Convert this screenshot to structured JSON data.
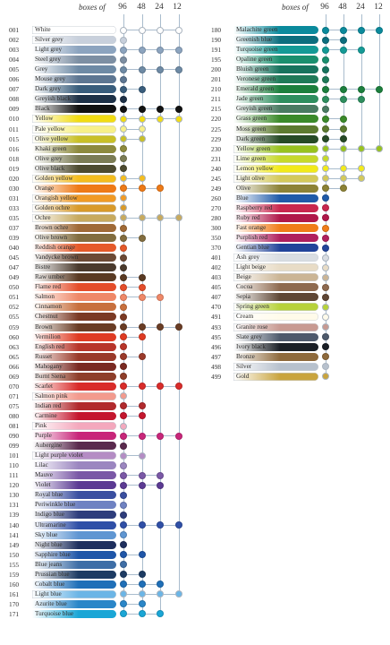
{
  "header": {
    "boxes_label": "boxes of",
    "box_sizes": [
      "96",
      "48",
      "24",
      "12"
    ]
  },
  "left_column": [
    {
      "code": "001",
      "name": "White",
      "color": "#ffffff",
      "light": true,
      "boxes": [
        96,
        48,
        24,
        12
      ]
    },
    {
      "code": "002",
      "name": "Silver grey",
      "color": "#c8d0dc",
      "light": true,
      "boxes": [
        96
      ]
    },
    {
      "code": "003",
      "name": "Light grey",
      "color": "#8ca4bf",
      "boxes": [
        96,
        48,
        24,
        12
      ]
    },
    {
      "code": "004",
      "name": "Steel grey",
      "color": "#7d8fa3",
      "boxes": [
        96
      ]
    },
    {
      "code": "005",
      "name": "Grey",
      "color": "#6e8aa5",
      "boxes": [
        96,
        48,
        24,
        12
      ]
    },
    {
      "code": "006",
      "name": "Mouse grey",
      "color": "#5d7692",
      "boxes": [
        96
      ]
    },
    {
      "code": "007",
      "name": "Dark grey",
      "color": "#395d7c",
      "boxes": [
        96,
        48
      ]
    },
    {
      "code": "008",
      "name": "Greyish black",
      "color": "#1e3147",
      "boxes": [
        96
      ]
    },
    {
      "code": "009",
      "name": "Black",
      "color": "#111111",
      "boxes": [
        96,
        48,
        24,
        12
      ]
    },
    {
      "code": "010",
      "name": "Yellow",
      "color": "#f2dc12",
      "light": true,
      "boxes": [
        96,
        48,
        24,
        12
      ]
    },
    {
      "code": "011",
      "name": "Pale yellow",
      "color": "#f7f089",
      "light": true,
      "boxes": [
        96,
        48
      ]
    },
    {
      "code": "015",
      "name": "Olive yellow",
      "color": "#c9c027",
      "light": true,
      "boxes": [
        96,
        48
      ]
    },
    {
      "code": "016",
      "name": "Khaki green",
      "color": "#8d8a3e",
      "boxes": [
        96
      ]
    },
    {
      "code": "018",
      "name": "Olive grey",
      "color": "#7b7c55",
      "boxes": [
        96
      ]
    },
    {
      "code": "019",
      "name": "Olive black",
      "color": "#4d4b30",
      "boxes": [
        96
      ]
    },
    {
      "code": "020",
      "name": "Golden yellow",
      "color": "#f4bd1e",
      "light": true,
      "boxes": [
        96,
        48
      ]
    },
    {
      "code": "030",
      "name": "Orange",
      "color": "#ee7a17",
      "boxes": [
        96,
        48,
        24
      ]
    },
    {
      "code": "031",
      "name": "Orangish yellow",
      "color": "#f19a24",
      "light": true,
      "boxes": [
        96
      ]
    },
    {
      "code": "033",
      "name": "Golden ochre",
      "color": "#d99a2a",
      "light": true,
      "boxes": [
        96
      ]
    },
    {
      "code": "035",
      "name": "Ochre",
      "color": "#c8aa5e",
      "light": true,
      "boxes": [
        96,
        48,
        24,
        12
      ]
    },
    {
      "code": "037",
      "name": "Brown ochre",
      "color": "#a06a37",
      "boxes": [
        96
      ]
    },
    {
      "code": "039",
      "name": "Olive brown",
      "color": "#826d3f",
      "boxes": [
        96,
        48
      ]
    },
    {
      "code": "040",
      "name": "Reddish orange",
      "color": "#e55a2a",
      "boxes": [
        96
      ]
    },
    {
      "code": "045",
      "name": "Vandycke brown",
      "color": "#6c4a36",
      "boxes": [
        96
      ]
    },
    {
      "code": "047",
      "name": "Bistre",
      "color": "#4a3a2d",
      "boxes": [
        96
      ]
    },
    {
      "code": "049",
      "name": "Raw umber",
      "color": "#5a3a23",
      "boxes": [
        96,
        48
      ]
    },
    {
      "code": "050",
      "name": "Flame red",
      "color": "#e44d2a",
      "boxes": [
        96,
        48
      ]
    },
    {
      "code": "051",
      "name": "Salmon",
      "color": "#ef8868",
      "boxes": [
        96,
        48,
        24
      ]
    },
    {
      "code": "052",
      "name": "Cinnamon",
      "color": "#c8703e",
      "boxes": [
        96
      ]
    },
    {
      "code": "055",
      "name": "Chestnut",
      "color": "#7b3a24",
      "boxes": [
        96
      ]
    },
    {
      "code": "059",
      "name": "Brown",
      "color": "#6a3d25",
      "boxes": [
        96,
        48,
        24,
        12
      ]
    },
    {
      "code": "060",
      "name": "Vermilion",
      "color": "#df3b23",
      "boxes": [
        96,
        48
      ]
    },
    {
      "code": "063",
      "name": "English red",
      "color": "#b8352a",
      "boxes": [
        96
      ]
    },
    {
      "code": "065",
      "name": "Russet",
      "color": "#9a3a2a",
      "boxes": [
        96,
        48
      ]
    },
    {
      "code": "066",
      "name": "Mahogany",
      "color": "#7a2a22",
      "boxes": [
        96
      ]
    },
    {
      "code": "069",
      "name": "Burnt Siena",
      "color": "#8e3e2a",
      "boxes": [
        96
      ]
    },
    {
      "code": "070",
      "name": "Scarlet",
      "color": "#d92c2a",
      "boxes": [
        96,
        48,
        24,
        12
      ]
    },
    {
      "code": "071",
      "name": "Salmon pink",
      "color": "#f39a8d",
      "light": true,
      "boxes": [
        96
      ]
    },
    {
      "code": "075",
      "name": "Indian red",
      "color": "#b12a2d",
      "boxes": [
        96,
        48
      ]
    },
    {
      "code": "080",
      "name": "Carmine",
      "color": "#c4162e",
      "boxes": [
        96,
        48
      ]
    },
    {
      "code": "081",
      "name": "Pink",
      "color": "#f4a8bd",
      "light": true,
      "boxes": [
        96
      ]
    },
    {
      "code": "090",
      "name": "Purple",
      "color": "#c8267a",
      "boxes": [
        96,
        48,
        24,
        12
      ]
    },
    {
      "code": "099",
      "name": "Aubergine",
      "color": "#5a2a4e",
      "boxes": [
        96
      ]
    },
    {
      "code": "101",
      "name": "Light purple violet",
      "color": "#b48cc4",
      "light": true,
      "boxes": [
        96,
        48
      ]
    },
    {
      "code": "110",
      "name": "Lilac",
      "color": "#9b86c0",
      "boxes": [
        96
      ]
    },
    {
      "code": "111",
      "name": "Mauve",
      "color": "#7a58a6",
      "boxes": [
        96,
        48,
        24
      ]
    },
    {
      "code": "120",
      "name": "Violet",
      "color": "#5b3a93",
      "boxes": [
        96,
        48,
        24
      ]
    },
    {
      "code": "130",
      "name": "Royal blue",
      "color": "#3a4fa0",
      "boxes": [
        96
      ]
    },
    {
      "code": "131",
      "name": "Periwinkle blue",
      "color": "#6f82c2",
      "boxes": [
        96
      ]
    },
    {
      "code": "139",
      "name": "Indigo blue",
      "color": "#2e3d7c",
      "boxes": [
        96
      ]
    },
    {
      "code": "140",
      "name": "Ultramarine",
      "color": "#2f4fa7",
      "boxes": [
        96,
        48,
        24,
        12
      ]
    },
    {
      "code": "141",
      "name": "Sky blue",
      "color": "#5f96d2",
      "boxes": [
        96
      ]
    },
    {
      "code": "149",
      "name": "Night blue",
      "color": "#1e2f5e",
      "boxes": [
        96
      ]
    },
    {
      "code": "150",
      "name": "Sapphire blue",
      "color": "#1f56a8",
      "boxes": [
        96,
        48
      ]
    },
    {
      "code": "155",
      "name": "Blue jeans",
      "color": "#3e6ea6",
      "boxes": [
        96
      ]
    },
    {
      "code": "159",
      "name": "Prussian blue",
      "color": "#1d3b63",
      "boxes": [
        96,
        48
      ]
    },
    {
      "code": "160",
      "name": "Cobalt blue",
      "color": "#1f6fb8",
      "boxes": [
        96,
        48,
        24
      ]
    },
    {
      "code": "161",
      "name": "Light blue",
      "color": "#6bb5e6",
      "light": true,
      "boxes": [
        96,
        48,
        24,
        12
      ]
    },
    {
      "code": "170",
      "name": "Azurite blue",
      "color": "#2a86c8",
      "boxes": [
        96,
        48
      ]
    },
    {
      "code": "171",
      "name": "Turquoise blue",
      "color": "#1aa6d6",
      "boxes": [
        96,
        48,
        24
      ]
    }
  ],
  "right_column": [
    {
      "code": "180",
      "name": "Malachite green",
      "color": "#0a8a9c",
      "boxes": [
        96,
        48,
        24,
        12
      ]
    },
    {
      "code": "190",
      "name": "Greenish blue",
      "color": "#0c6e7e",
      "boxes": [
        96,
        48
      ]
    },
    {
      "code": "191",
      "name": "Turquoise green",
      "color": "#149a96",
      "boxes": [
        96,
        48,
        24
      ]
    },
    {
      "code": "195",
      "name": "Opaline green",
      "color": "#1a8f6e",
      "boxes": [
        96
      ]
    },
    {
      "code": "200",
      "name": "Bluish green",
      "color": "#17735d",
      "boxes": [
        96
      ]
    },
    {
      "code": "201",
      "name": "Veronese green",
      "color": "#1f7a58",
      "boxes": [
        96
      ]
    },
    {
      "code": "210",
      "name": "Emerald green",
      "color": "#1c7f3d",
      "boxes": [
        96,
        48,
        24,
        12
      ]
    },
    {
      "code": "211",
      "name": "Jade green",
      "color": "#2e8e5e",
      "boxes": [
        96,
        48,
        24
      ]
    },
    {
      "code": "215",
      "name": "Greyish green",
      "color": "#4a7b62",
      "boxes": [
        96
      ]
    },
    {
      "code": "220",
      "name": "Grass green",
      "color": "#3b8a2a",
      "boxes": [
        96,
        48
      ]
    },
    {
      "code": "225",
      "name": "Moss green",
      "color": "#5c7a2f",
      "boxes": [
        96,
        48
      ]
    },
    {
      "code": "229",
      "name": "Dark green",
      "color": "#264a26",
      "boxes": [
        96,
        48
      ]
    },
    {
      "code": "230",
      "name": "Yellow green",
      "color": "#98c21e",
      "light": true,
      "boxes": [
        96,
        48,
        24,
        12
      ]
    },
    {
      "code": "231",
      "name": "Lime green",
      "color": "#c7d92a",
      "light": true,
      "boxes": [
        96
      ]
    },
    {
      "code": "240",
      "name": "Lemon yellow",
      "color": "#f2ea1a",
      "light": true,
      "boxes": [
        96,
        48,
        24
      ]
    },
    {
      "code": "245",
      "name": "Light olive",
      "color": "#d4c95a",
      "light": true,
      "boxes": [
        96,
        48,
        24
      ]
    },
    {
      "code": "249",
      "name": "Olive",
      "color": "#8c8236",
      "boxes": [
        96,
        48
      ]
    },
    {
      "code": "260",
      "name": "Blue",
      "color": "#1f5aa8",
      "boxes": [
        96
      ]
    },
    {
      "code": "270",
      "name": "Raspberry red",
      "color": "#c8274e",
      "boxes": [
        96
      ]
    },
    {
      "code": "280",
      "name": "Ruby red",
      "color": "#b0184a",
      "boxes": [
        96
      ]
    },
    {
      "code": "300",
      "name": "Fast orange",
      "color": "#f07d1a",
      "boxes": [
        96
      ]
    },
    {
      "code": "350",
      "name": "Purplish red",
      "color": "#b0205e",
      "boxes": [
        96
      ]
    },
    {
      "code": "370",
      "name": "Gentian blue",
      "color": "#22449a",
      "boxes": [
        96
      ]
    },
    {
      "code": "401",
      "name": "Ash grey",
      "color": "#d9dde2",
      "light": true,
      "boxes": [
        96
      ]
    },
    {
      "code": "402",
      "name": "Light beige",
      "color": "#e8dcc6",
      "light": true,
      "boxes": [
        96
      ]
    },
    {
      "code": "403",
      "name": "Beige",
      "color": "#cbb595",
      "light": true,
      "boxes": [
        96
      ]
    },
    {
      "code": "405",
      "name": "Cocoa",
      "color": "#8e6a4f",
      "boxes": [
        96
      ]
    },
    {
      "code": "407",
      "name": "Sepia",
      "color": "#5e4634",
      "boxes": [
        96
      ]
    },
    {
      "code": "470",
      "name": "Spring green",
      "color": "#b7d23a",
      "light": true,
      "boxes": [
        96
      ]
    },
    {
      "code": "491",
      "name": "Cream",
      "color": "#fffbea",
      "light": true,
      "boxes": [
        96
      ]
    },
    {
      "code": "493",
      "name": "Granite rose",
      "color": "#c89a92",
      "light": true,
      "boxes": [
        96
      ]
    },
    {
      "code": "495",
      "name": "Slate grey",
      "color": "#4e5a6c",
      "boxes": [
        96
      ]
    },
    {
      "code": "496",
      "name": "Ivory black",
      "color": "#1a1f26",
      "boxes": [
        96
      ]
    },
    {
      "code": "497",
      "name": "Bronze",
      "color": "#8e6a3c",
      "boxes": [
        96
      ]
    },
    {
      "code": "498",
      "name": "Silver",
      "color": "#b7c1cd",
      "light": true,
      "boxes": [
        96
      ]
    },
    {
      "code": "499",
      "name": "Gold",
      "color": "#c9a43e",
      "light": true,
      "boxes": [
        96
      ]
    }
  ]
}
